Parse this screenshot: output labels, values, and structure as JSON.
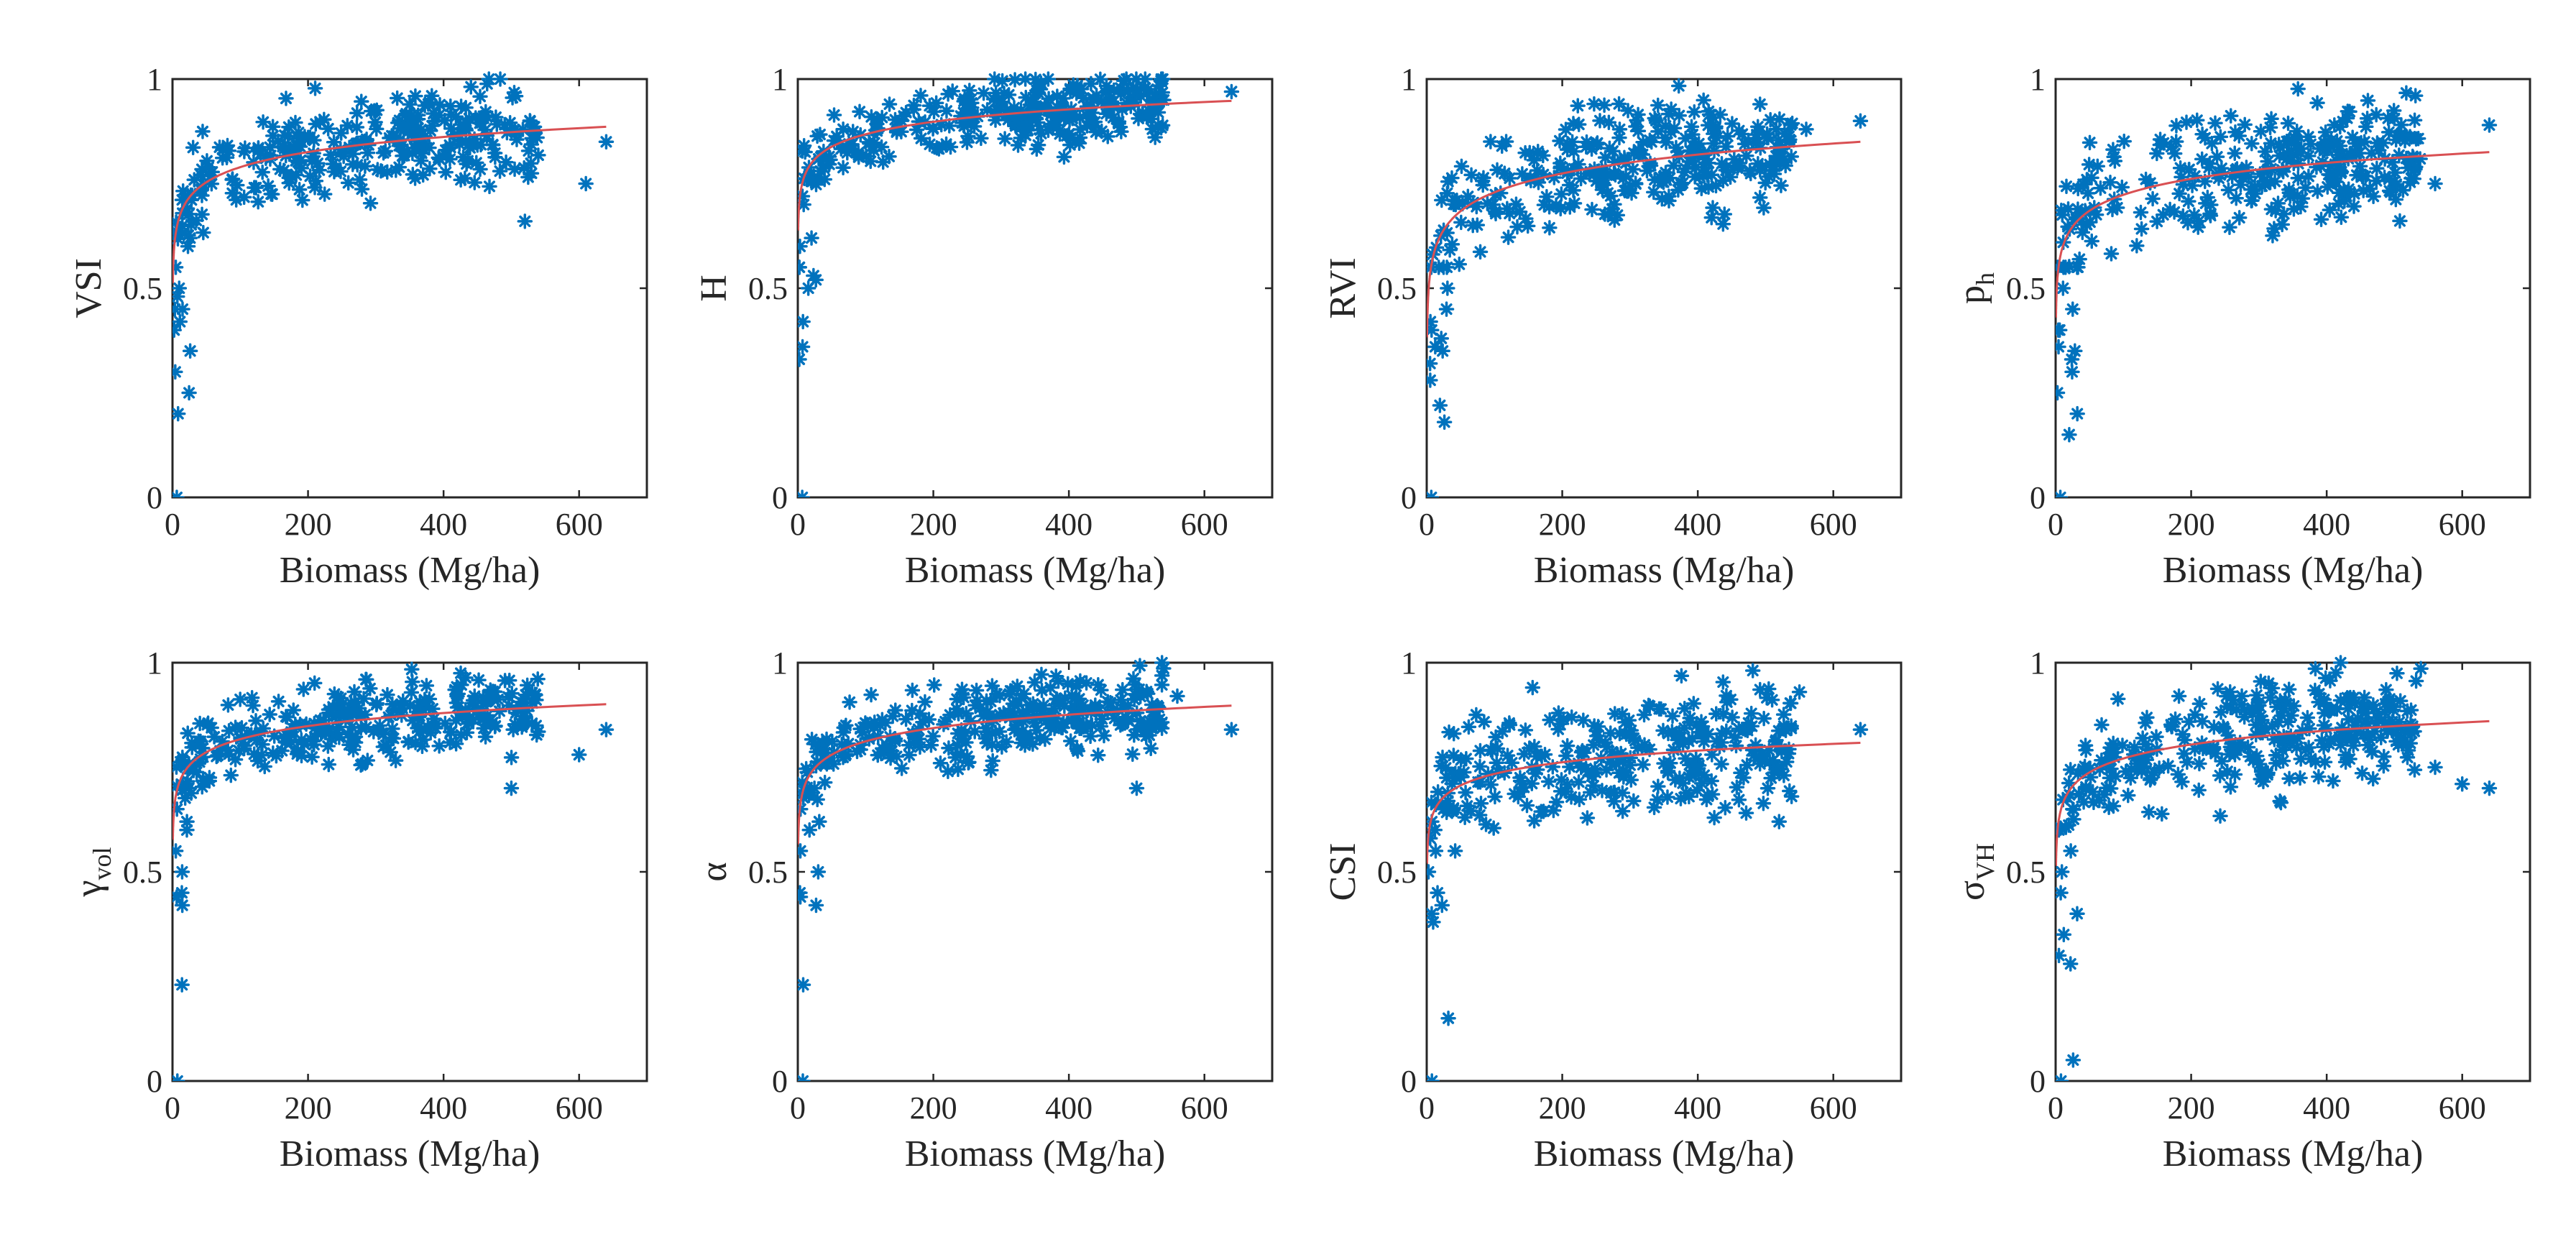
{
  "figure": {
    "xlabel": "Biomass (Mg/ha)",
    "xticks": [
      "0",
      "200",
      "400",
      "600"
    ],
    "yticks": [
      "0",
      "0.5",
      "1"
    ],
    "xlim": [
      0,
      700
    ],
    "ylim": [
      0,
      1
    ],
    "marker_color": "#0072BD",
    "fit_color": "#D95053"
  },
  "chart_data": [
    {
      "type": "scatter",
      "ylabel": "VSI",
      "ylabel_sub": "",
      "xlabel": "Biomass (Mg/ha)",
      "xlim": [
        0,
        700
      ],
      "ylim": [
        0,
        1
      ],
      "fit": {
        "model": "y = a + b*ln(x)",
        "a": 0.55,
        "b": 0.052
      },
      "spread": 0.07,
      "low_y": [
        0.0,
        0.2,
        0.25,
        0.3,
        0.35,
        0.42,
        0.45,
        0.48,
        0.5,
        0.55,
        0.6,
        0.62,
        0.4,
        0.45
      ],
      "outliers": [
        [
          520,
          0.66
        ],
        [
          610,
          0.75
        ],
        [
          640,
          0.85
        ]
      ]
    },
    {
      "type": "scatter",
      "ylabel": "H",
      "ylabel_sub": "",
      "xlabel": "Biomass (Mg/ha)",
      "xlim": [
        0,
        700
      ],
      "ylim": [
        0,
        1
      ],
      "fit": {
        "model": "y = a + b*ln(x)",
        "a": 0.67,
        "b": 0.043
      },
      "spread": 0.05,
      "low_y": [
        0.0,
        0.33,
        0.36,
        0.42,
        0.5,
        0.52,
        0.55,
        0.6,
        0.62,
        0.55,
        0.53,
        0.7,
        0.72
      ],
      "outliers": [
        [
          640,
          0.97
        ],
        [
          540,
          0.95
        ]
      ]
    },
    {
      "type": "scatter",
      "ylabel": "RVI",
      "ylabel_sub": "",
      "xlabel": "Biomass (Mg/ha)",
      "xlim": [
        0,
        700
      ],
      "ylim": [
        0,
        1
      ],
      "fit": {
        "model": "y = a + b*ln(x)",
        "a": 0.43,
        "b": 0.065
      },
      "spread": 0.08,
      "low_y": [
        0.0,
        0.18,
        0.22,
        0.28,
        0.32,
        0.36,
        0.4,
        0.45,
        0.5,
        0.55,
        0.35,
        0.38,
        0.42
      ],
      "outliers": [
        [
          640,
          0.9
        ],
        [
          560,
          0.88
        ]
      ]
    },
    {
      "type": "scatter",
      "ylabel": "p",
      "ylabel_sub": "h",
      "xlabel": "Biomass (Mg/ha)",
      "xlim": [
        0,
        700
      ],
      "ylim": [
        0,
        1
      ],
      "fit": {
        "model": "y = a + b*ln(x)",
        "a": 0.47,
        "b": 0.055
      },
      "spread": 0.09,
      "low_y": [
        0.0,
        0.15,
        0.2,
        0.25,
        0.3,
        0.35,
        0.4,
        0.45,
        0.5,
        0.55,
        0.33,
        0.36,
        0.4
      ],
      "outliers": [
        [
          640,
          0.89
        ],
        [
          560,
          0.75
        ]
      ]
    },
    {
      "type": "scatter",
      "ylabel": "γ",
      "ylabel_sub": "vol",
      "xlabel": "Biomass (Mg/ha)",
      "xlim": [
        0,
        700
      ],
      "ylim": [
        0,
        1
      ],
      "fit": {
        "model": "y = a + b*ln(x)",
        "a": 0.61,
        "b": 0.045
      },
      "spread": 0.06,
      "low_y": [
        0.0,
        0.23,
        0.42,
        0.44,
        0.45,
        0.5,
        0.55,
        0.6,
        0.62,
        0.65,
        0.7
      ],
      "outliers": [
        [
          640,
          0.84
        ],
        [
          500,
          0.7
        ],
        [
          600,
          0.78
        ]
      ]
    },
    {
      "type": "scatter",
      "ylabel": "α",
      "ylabel_sub": "",
      "xlabel": "Biomass (Mg/ha)",
      "xlim": [
        0,
        700
      ],
      "ylim": [
        0,
        1
      ],
      "fit": {
        "model": "y = a + b*ln(x)",
        "a": 0.6,
        "b": 0.046
      },
      "spread": 0.06,
      "low_y": [
        0.0,
        0.23,
        0.42,
        0.44,
        0.45,
        0.5,
        0.55,
        0.6,
        0.62,
        0.65,
        0.7
      ],
      "outliers": [
        [
          640,
          0.84
        ],
        [
          500,
          0.7
        ],
        [
          560,
          0.92
        ]
      ]
    },
    {
      "type": "scatter",
      "ylabel": "CSI",
      "ylabel_sub": "",
      "xlabel": "Biomass (Mg/ha)",
      "xlim": [
        0,
        700
      ],
      "ylim": [
        0,
        1
      ],
      "fit": {
        "model": "y = a + b*ln(x)",
        "a": 0.55,
        "b": 0.04
      },
      "spread": 0.09,
      "low_y": [
        0.0,
        0.15,
        0.38,
        0.4,
        0.42,
        0.45,
        0.5,
        0.55,
        0.6,
        0.62,
        0.65
      ],
      "outliers": [
        [
          640,
          0.84
        ],
        [
          550,
          0.93
        ],
        [
          520,
          0.62
        ]
      ]
    },
    {
      "type": "scatter",
      "ylabel": "σ",
      "ylabel_sub": "VH",
      "xlabel": "Biomass (Mg/ha)",
      "xlim": [
        0,
        700
      ],
      "ylim": [
        0,
        1
      ],
      "fit": {
        "model": "y = a + b*ln(x)",
        "a": 0.55,
        "b": 0.048
      },
      "spread": 0.08,
      "low_y": [
        0.0,
        0.05,
        0.28,
        0.3,
        0.35,
        0.4,
        0.45,
        0.5,
        0.55,
        0.6,
        0.65
      ],
      "outliers": [
        [
          640,
          0.7
        ],
        [
          600,
          0.71
        ],
        [
          560,
          0.75
        ]
      ]
    }
  ]
}
